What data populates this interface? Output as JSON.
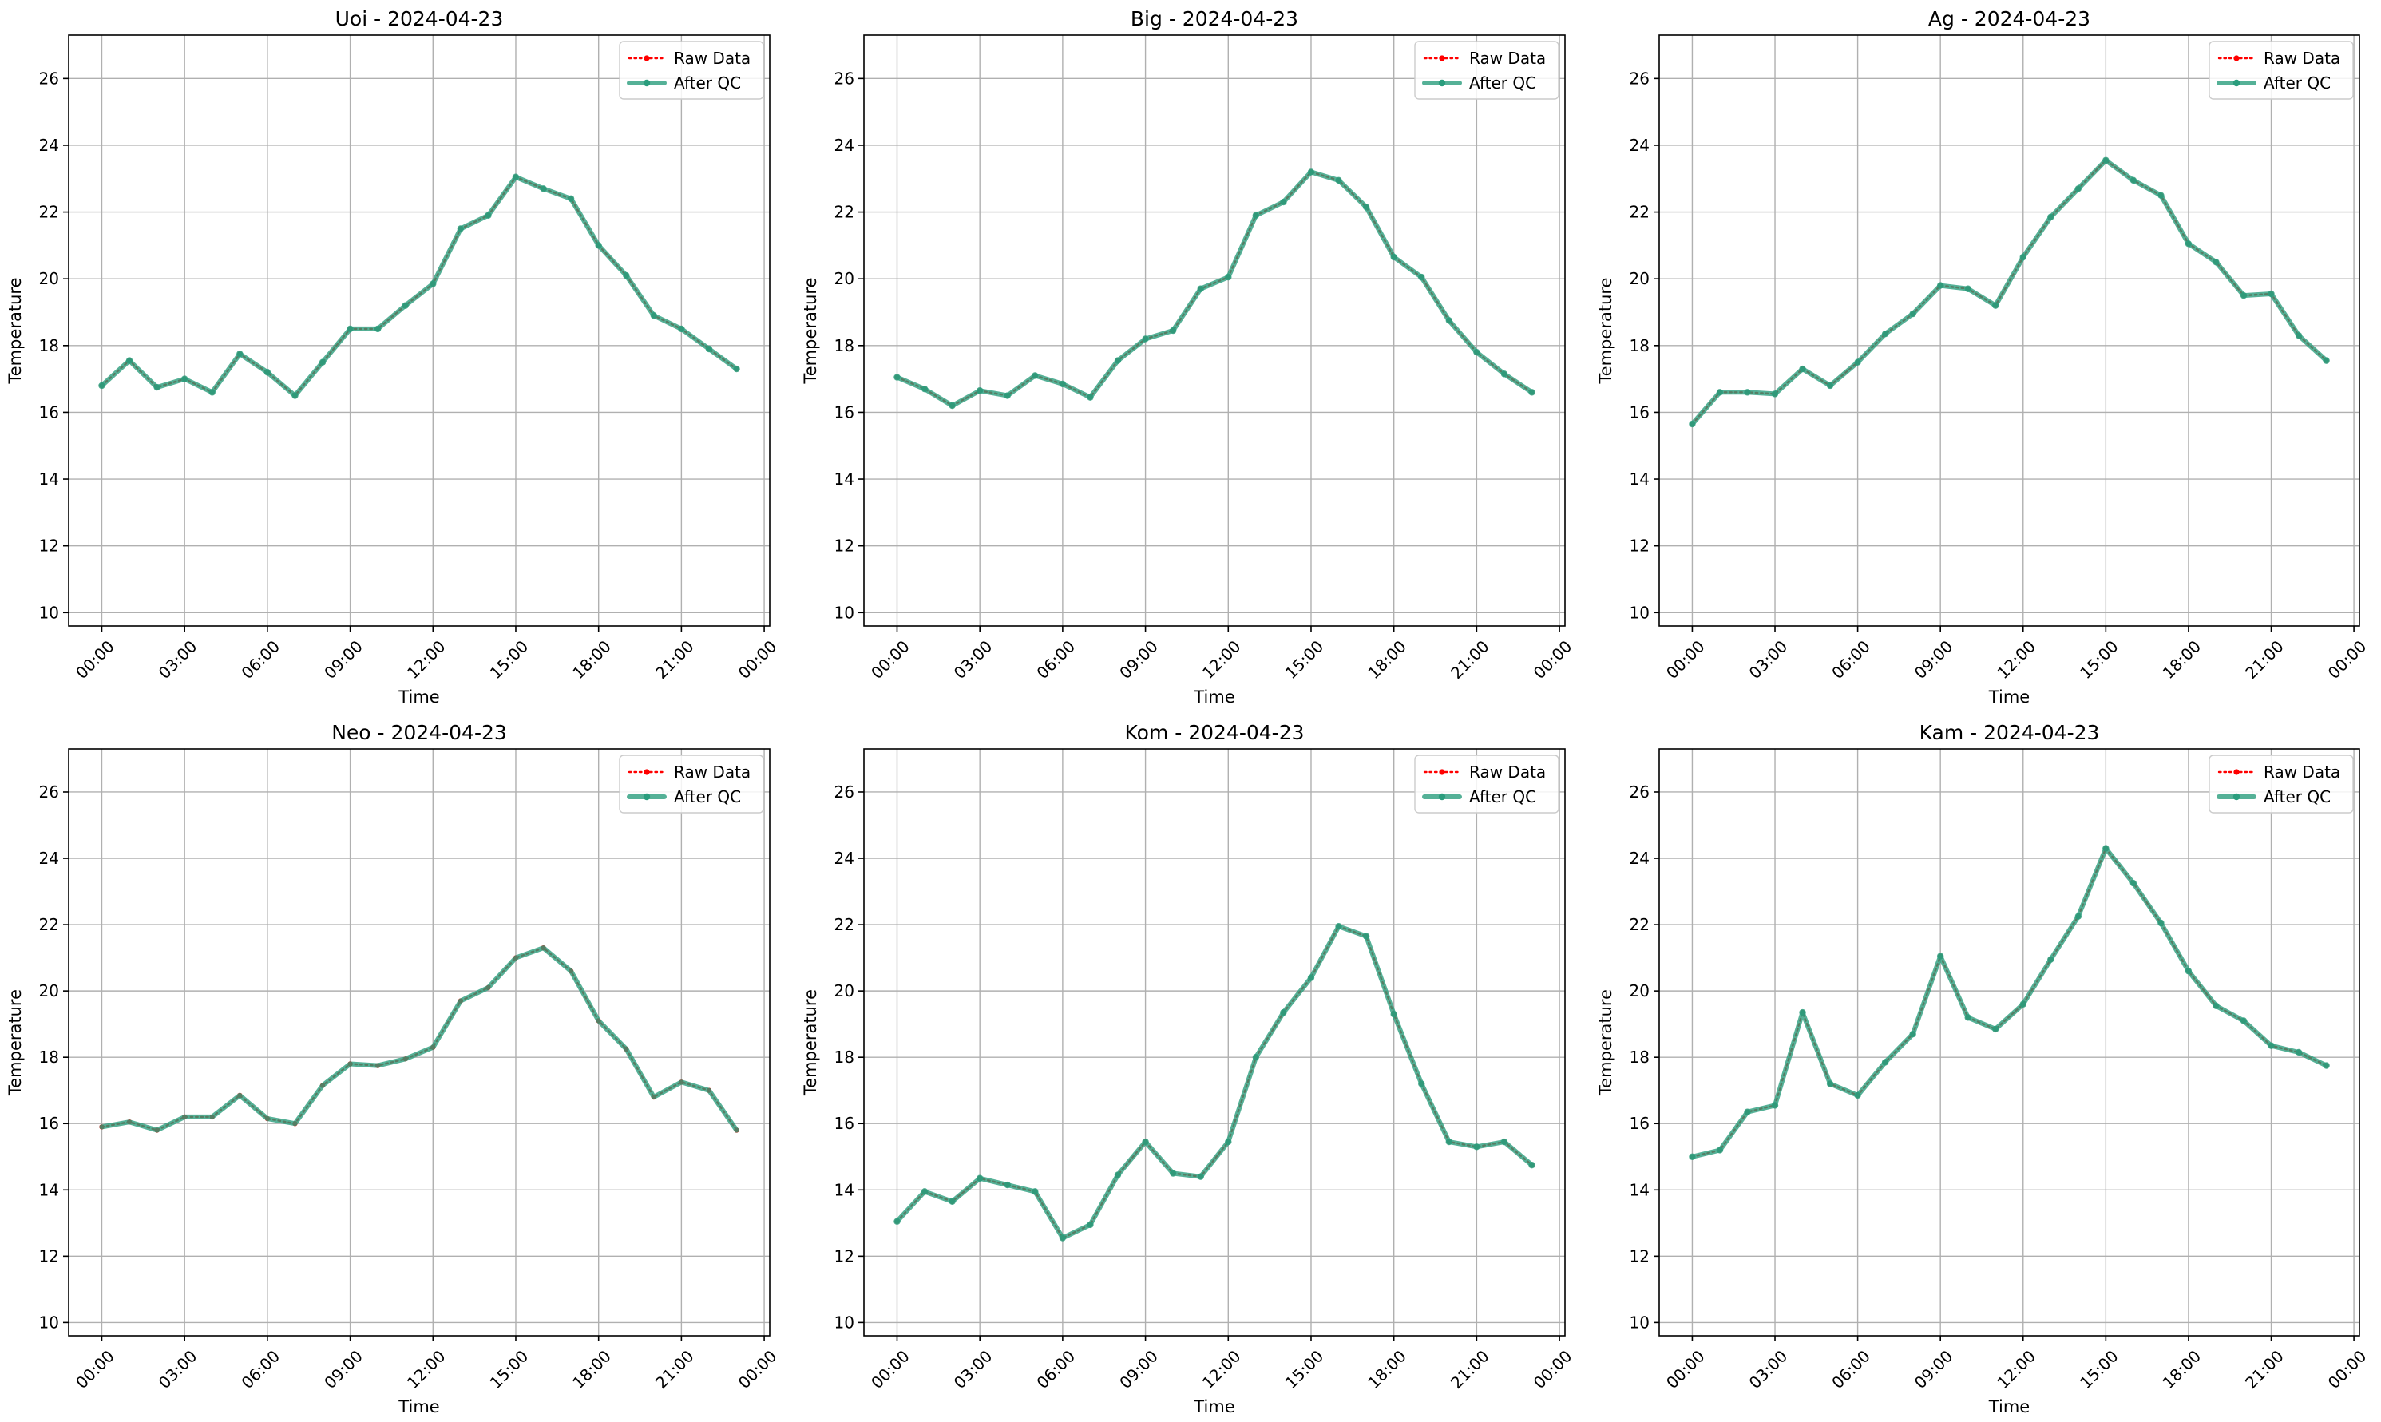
{
  "colors": {
    "raw": "#ff0000",
    "qc": "#2a9d7d",
    "grid": "#b0b0b0",
    "axes": "#000000"
  },
  "chart_data": [
    {
      "type": "line",
      "title": "Uoi - 2024-04-23",
      "xlabel": "Time",
      "ylabel": "Temperature",
      "x": [
        0,
        1,
        2,
        3,
        4,
        5,
        6,
        7,
        8,
        9,
        10,
        11,
        12,
        13,
        14,
        15,
        16,
        17,
        18,
        19,
        20,
        21,
        22,
        23
      ],
      "xlim": [
        -1.2,
        24.2
      ],
      "ylim": [
        9.6,
        27.3
      ],
      "x_ticks": [
        0,
        3,
        6,
        9,
        12,
        15,
        18,
        21,
        24
      ],
      "x_tick_labels": [
        "00:00",
        "03:00",
        "06:00",
        "09:00",
        "12:00",
        "15:00",
        "18:00",
        "21:00",
        "00:00"
      ],
      "y_ticks": [
        10,
        12,
        14,
        16,
        18,
        20,
        22,
        24,
        26
      ],
      "y_tick_labels": [
        "10",
        "12",
        "14",
        "16",
        "18",
        "20",
        "22",
        "24",
        "26"
      ],
      "grid": true,
      "legend": "top-right",
      "series": [
        {
          "name": "Raw Data",
          "style": "dotted-markers",
          "values": [
            16.8,
            17.55,
            16.75,
            17.0,
            16.6,
            17.75,
            17.2,
            16.5,
            17.5,
            18.5,
            18.5,
            19.2,
            19.85,
            21.5,
            21.9,
            23.05,
            22.7,
            22.4,
            21.0,
            20.1,
            18.9,
            18.5,
            17.9,
            17.3
          ]
        },
        {
          "name": "After QC",
          "style": "solid-markers",
          "values": [
            16.8,
            17.55,
            16.75,
            17.0,
            16.6,
            17.75,
            17.2,
            16.5,
            17.5,
            18.5,
            18.5,
            19.2,
            19.85,
            21.5,
            21.9,
            23.05,
            22.7,
            22.4,
            21.0,
            20.1,
            18.9,
            18.5,
            17.9,
            17.3
          ]
        }
      ]
    },
    {
      "type": "line",
      "title": "Big - 2024-04-23",
      "xlabel": "Time",
      "ylabel": "Temperature",
      "x": [
        0,
        1,
        2,
        3,
        4,
        5,
        6,
        7,
        8,
        9,
        10,
        11,
        12,
        13,
        14,
        15,
        16,
        17,
        18,
        19,
        20,
        21,
        22,
        23
      ],
      "xlim": [
        -1.2,
        24.2
      ],
      "ylim": [
        9.6,
        27.3
      ],
      "x_ticks": [
        0,
        3,
        6,
        9,
        12,
        15,
        18,
        21,
        24
      ],
      "x_tick_labels": [
        "00:00",
        "03:00",
        "06:00",
        "09:00",
        "12:00",
        "15:00",
        "18:00",
        "21:00",
        "00:00"
      ],
      "y_ticks": [
        10,
        12,
        14,
        16,
        18,
        20,
        22,
        24,
        26
      ],
      "y_tick_labels": [
        "10",
        "12",
        "14",
        "16",
        "18",
        "20",
        "22",
        "24",
        "26"
      ],
      "grid": true,
      "legend": "top-right",
      "series": [
        {
          "name": "Raw Data",
          "style": "dotted-markers",
          "values": [
            17.05,
            16.7,
            16.2,
            16.65,
            16.5,
            17.1,
            16.85,
            16.45,
            17.55,
            18.2,
            18.45,
            19.7,
            20.05,
            21.9,
            22.3,
            23.2,
            22.95,
            22.15,
            20.65,
            20.05,
            18.75,
            17.8,
            17.15,
            16.6
          ]
        },
        {
          "name": "After QC",
          "style": "solid-markers",
          "values": [
            17.05,
            16.7,
            16.2,
            16.65,
            16.5,
            17.1,
            16.85,
            16.45,
            17.55,
            18.2,
            18.45,
            19.7,
            20.05,
            21.9,
            22.3,
            23.2,
            22.95,
            22.15,
            20.65,
            20.05,
            18.75,
            17.8,
            17.15,
            16.6
          ]
        }
      ]
    },
    {
      "type": "line",
      "title": "Ag - 2024-04-23",
      "xlabel": "Time",
      "ylabel": "Temperature",
      "x": [
        0,
        1,
        2,
        3,
        4,
        5,
        6,
        7,
        8,
        9,
        10,
        11,
        12,
        13,
        14,
        15,
        16,
        17,
        18,
        19,
        20,
        21,
        22,
        23
      ],
      "xlim": [
        -1.2,
        24.2
      ],
      "ylim": [
        9.6,
        27.3
      ],
      "x_ticks": [
        0,
        3,
        6,
        9,
        12,
        15,
        18,
        21,
        24
      ],
      "x_tick_labels": [
        "00:00",
        "03:00",
        "06:00",
        "09:00",
        "12:00",
        "15:00",
        "18:00",
        "21:00",
        "00:00"
      ],
      "y_ticks": [
        10,
        12,
        14,
        16,
        18,
        20,
        22,
        24,
        26
      ],
      "y_tick_labels": [
        "10",
        "12",
        "14",
        "16",
        "18",
        "20",
        "22",
        "24",
        "26"
      ],
      "grid": true,
      "legend": "top-right",
      "series": [
        {
          "name": "Raw Data",
          "style": "dotted-markers",
          "values": [
            15.65,
            16.6,
            16.6,
            16.55,
            17.3,
            16.8,
            17.5,
            18.35,
            18.95,
            19.8,
            19.7,
            19.2,
            20.65,
            21.85,
            22.7,
            23.55,
            22.95,
            22.5,
            21.05,
            20.5,
            19.5,
            19.55,
            18.3,
            17.55
          ]
        },
        {
          "name": "After QC",
          "style": "solid-markers",
          "values": [
            15.65,
            16.6,
            16.6,
            16.55,
            17.3,
            16.8,
            17.5,
            18.35,
            18.95,
            19.8,
            19.7,
            19.2,
            20.65,
            21.85,
            22.7,
            23.55,
            22.95,
            22.5,
            21.05,
            20.5,
            19.5,
            19.55,
            18.3,
            17.55
          ]
        }
      ]
    },
    {
      "type": "line",
      "title": "Neo - 2024-04-23",
      "xlabel": "Time",
      "ylabel": "Temperature",
      "x": [
        0,
        1,
        2,
        3,
        4,
        5,
        6,
        7,
        8,
        9,
        10,
        11,
        12,
        13,
        14,
        15,
        16,
        17,
        18,
        19,
        20,
        21,
        22,
        23
      ],
      "xlim": [
        -1.2,
        24.2
      ],
      "ylim": [
        9.6,
        27.3
      ],
      "x_ticks": [
        0,
        3,
        6,
        9,
        12,
        15,
        18,
        21,
        24
      ],
      "x_tick_labels": [
        "00:00",
        "03:00",
        "06:00",
        "09:00",
        "12:00",
        "15:00",
        "18:00",
        "21:00",
        "00:00"
      ],
      "y_ticks": [
        10,
        12,
        14,
        16,
        18,
        20,
        22,
        24,
        26
      ],
      "y_tick_labels": [
        "10",
        "12",
        "14",
        "16",
        "18",
        "20",
        "22",
        "24",
        "26"
      ],
      "grid": true,
      "legend": "top-right",
      "series": [
        {
          "name": "Raw Data",
          "style": "dotted-markers",
          "values": [
            15.9,
            16.05,
            15.8,
            16.2,
            16.2,
            16.85,
            16.15,
            16.0,
            17.15,
            17.8,
            17.75,
            17.95,
            18.3,
            19.7,
            20.1,
            21.0,
            21.3,
            20.6,
            19.1,
            18.25,
            16.8,
            17.25,
            17.0,
            15.8
          ]
        },
        {
          "name": "After QC",
          "style": "solid",
          "values": [
            15.9,
            16.05,
            15.8,
            16.2,
            16.2,
            16.85,
            16.15,
            16.0,
            17.15,
            17.8,
            17.75,
            17.95,
            18.3,
            19.7,
            20.1,
            21.0,
            21.3,
            20.6,
            19.1,
            18.25,
            16.8,
            17.25,
            17.0,
            15.8
          ]
        }
      ]
    },
    {
      "type": "line",
      "title": "Kom - 2024-04-23",
      "xlabel": "Time",
      "ylabel": "Temperature",
      "x": [
        0,
        1,
        2,
        3,
        4,
        5,
        6,
        7,
        8,
        9,
        10,
        11,
        12,
        13,
        14,
        15,
        16,
        17,
        18,
        19,
        20,
        21,
        22,
        23
      ],
      "xlim": [
        -1.2,
        24.2
      ],
      "ylim": [
        9.6,
        27.3
      ],
      "x_ticks": [
        0,
        3,
        6,
        9,
        12,
        15,
        18,
        21,
        24
      ],
      "x_tick_labels": [
        "00:00",
        "03:00",
        "06:00",
        "09:00",
        "12:00",
        "15:00",
        "18:00",
        "21:00",
        "00:00"
      ],
      "y_ticks": [
        10,
        12,
        14,
        16,
        18,
        20,
        22,
        24,
        26
      ],
      "y_tick_labels": [
        "10",
        "12",
        "14",
        "16",
        "18",
        "20",
        "22",
        "24",
        "26"
      ],
      "grid": true,
      "legend": "top-right",
      "series": [
        {
          "name": "Raw Data",
          "style": "dotted-markers",
          "values": [
            13.05,
            13.95,
            13.65,
            14.35,
            14.15,
            13.95,
            12.55,
            12.95,
            14.45,
            15.45,
            14.5,
            14.4,
            15.45,
            18.0,
            19.35,
            20.4,
            21.95,
            21.65,
            19.3,
            17.2,
            15.45,
            15.3,
            15.45,
            14.75
          ]
        },
        {
          "name": "After QC",
          "style": "solid-markers",
          "values": [
            13.05,
            13.95,
            13.65,
            14.35,
            14.15,
            13.95,
            12.55,
            12.95,
            14.45,
            15.45,
            14.5,
            14.4,
            15.45,
            18.0,
            19.35,
            20.4,
            21.95,
            21.65,
            19.3,
            17.2,
            15.45,
            15.3,
            15.45,
            14.75
          ]
        }
      ]
    },
    {
      "type": "line",
      "title": "Kam - 2024-04-23",
      "xlabel": "Time",
      "ylabel": "Temperature",
      "x": [
        0,
        1,
        2,
        3,
        4,
        5,
        6,
        7,
        8,
        9,
        10,
        11,
        12,
        13,
        14,
        15,
        16,
        17,
        18,
        19,
        20,
        21,
        22,
        23
      ],
      "xlim": [
        -1.2,
        24.2
      ],
      "ylim": [
        9.6,
        27.3
      ],
      "x_ticks": [
        0,
        3,
        6,
        9,
        12,
        15,
        18,
        21,
        24
      ],
      "x_tick_labels": [
        "00:00",
        "03:00",
        "06:00",
        "09:00",
        "12:00",
        "15:00",
        "18:00",
        "21:00",
        "00:00"
      ],
      "y_ticks": [
        10,
        12,
        14,
        16,
        18,
        20,
        22,
        24,
        26
      ],
      "y_tick_labels": [
        "10",
        "12",
        "14",
        "16",
        "18",
        "20",
        "22",
        "24",
        "26"
      ],
      "grid": true,
      "legend": "top-right",
      "series": [
        {
          "name": "Raw Data",
          "style": "dotted-markers",
          "values": [
            15.0,
            15.2,
            16.35,
            16.55,
            19.35,
            17.2,
            16.85,
            17.85,
            18.7,
            21.05,
            19.2,
            18.85,
            19.6,
            20.95,
            22.25,
            24.3,
            23.25,
            22.05,
            20.6,
            19.55,
            19.1,
            18.35,
            18.15,
            17.75
          ]
        },
        {
          "name": "After QC",
          "style": "solid-markers",
          "values": [
            15.0,
            15.2,
            16.35,
            16.55,
            19.35,
            17.2,
            16.85,
            17.85,
            18.7,
            21.05,
            19.2,
            18.85,
            19.6,
            20.95,
            22.25,
            24.3,
            23.25,
            22.05,
            20.6,
            19.55,
            19.1,
            18.35,
            18.15,
            17.75
          ]
        }
      ]
    }
  ]
}
